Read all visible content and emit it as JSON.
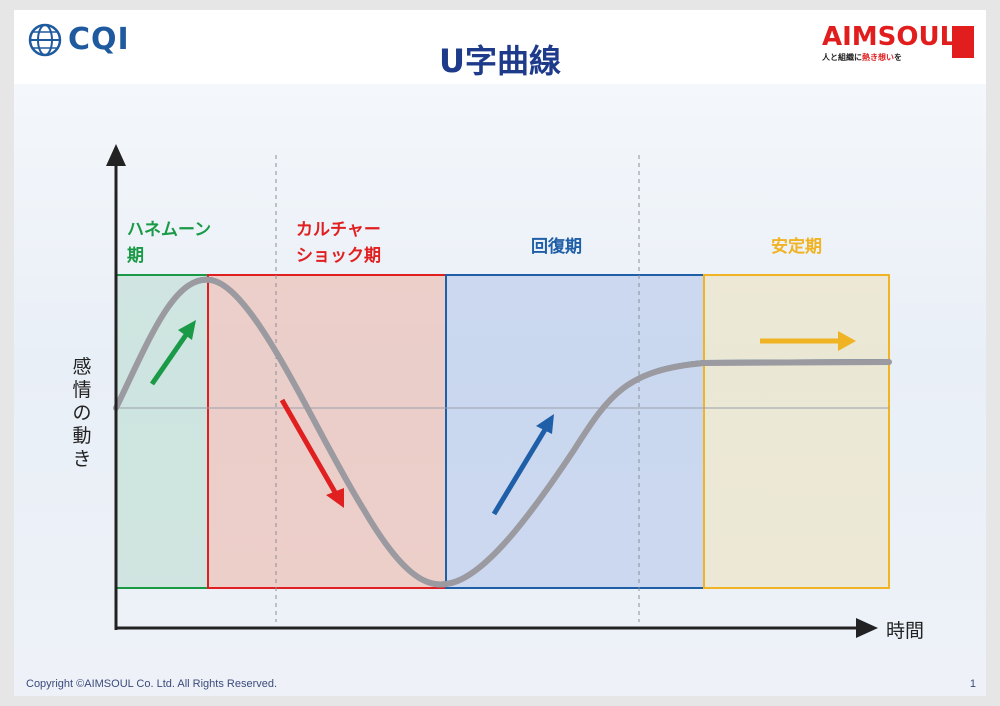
{
  "title": "U字曲線",
  "logos": {
    "left_text": "CQI",
    "right_main": "AIMSOUL",
    "right_tagline_pre": "人と組織に",
    "right_tagline_red": "熱き想い",
    "right_tagline_post": "を"
  },
  "axes": {
    "y_label_chars": [
      "感",
      "情",
      "の",
      "動",
      "き"
    ],
    "x_label": "時間"
  },
  "phases": [
    {
      "line1": "ハネムーン",
      "line2": "期",
      "color": "#1a9a46"
    },
    {
      "line1": "カルチャー",
      "line2": "ショック期",
      "color": "#e02020"
    },
    {
      "line1": "回復期",
      "line2": "",
      "color": "#1f5fa8"
    },
    {
      "line1": "安定期",
      "line2": "",
      "color": "#f0b323"
    }
  ],
  "footer": {
    "copyright": "Copyright ©AIMSOUL  Co. Ltd. All Rights Reserved.",
    "page": "1"
  }
}
